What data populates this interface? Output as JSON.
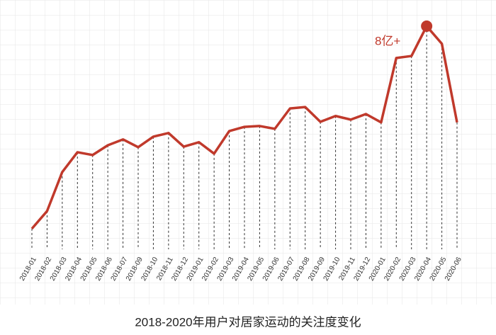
{
  "chart_data": {
    "type": "line",
    "title": "2018-2020年用户对居家运动的关注度变化",
    "categories": [
      "2018-01",
      "2018-02",
      "2018-03",
      "2018-04",
      "2018-05",
      "2018-06",
      "2018-07",
      "2018-09",
      "2018-10",
      "2018-11",
      "2018-12",
      "2019-01",
      "2019-02",
      "2019-03",
      "2019-04",
      "2019-05",
      "2019-06",
      "2019-07",
      "2019-08",
      "2019-09",
      "2019-10",
      "2019-11",
      "2019-12",
      "2020-01",
      "2020-02",
      "2020-03",
      "2020-04",
      "2020-05",
      "2020-06"
    ],
    "values": [
      0.74,
      1.37,
      2.77,
      3.48,
      3.38,
      3.73,
      3.94,
      3.66,
      4.04,
      4.17,
      3.68,
      3.84,
      3.43,
      4.24,
      4.39,
      4.42,
      4.32,
      5.05,
      5.1,
      4.57,
      4.78,
      4.65,
      4.85,
      4.55,
      6.86,
      6.93,
      8.0,
      7.37,
      4.55
    ],
    "value_labels": [
      null,
      null,
      null,
      null,
      null,
      null,
      null,
      null,
      null,
      null,
      null,
      null,
      null,
      null,
      null,
      null,
      null,
      null,
      null,
      null,
      null,
      null,
      null,
      null,
      null,
      null,
      "8亿+",
      null,
      null
    ],
    "color": "#c0392b",
    "ylim": [
      0,
      8.43
    ]
  }
}
